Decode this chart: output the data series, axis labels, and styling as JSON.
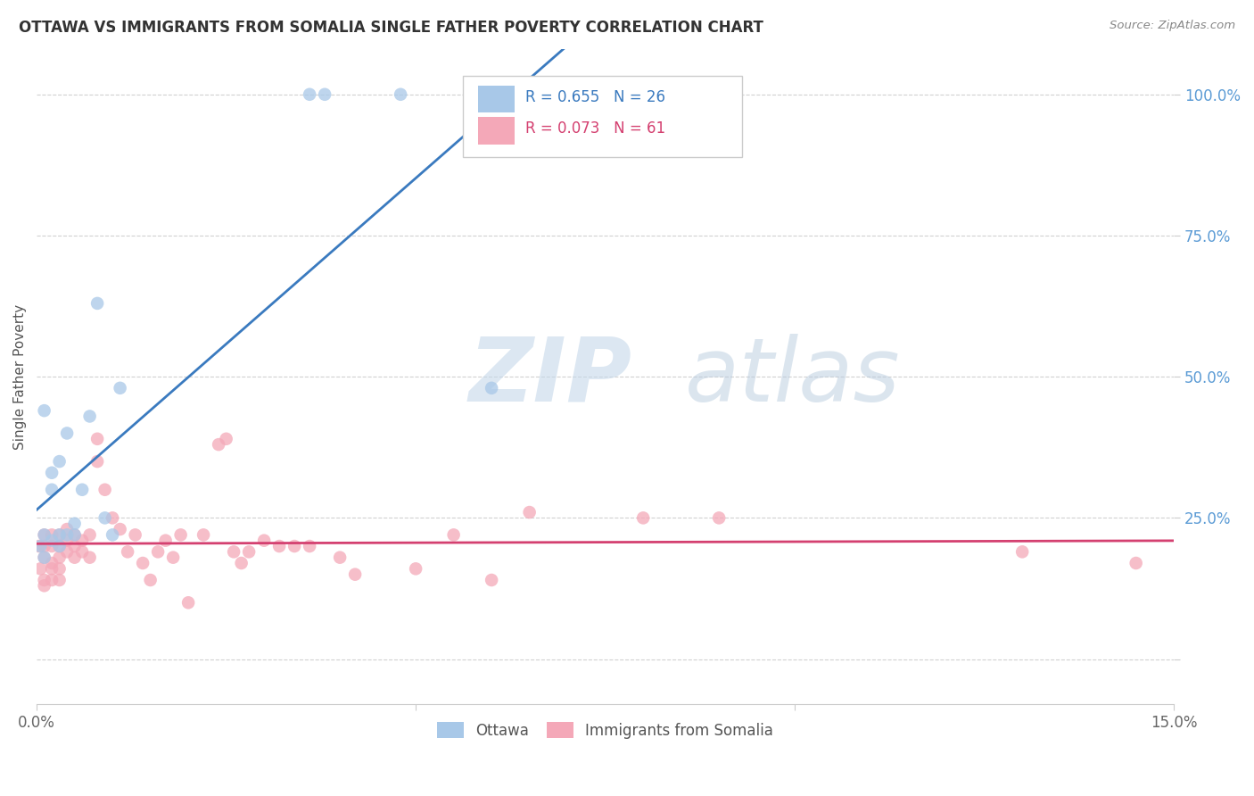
{
  "title": "OTTAWA VS IMMIGRANTS FROM SOMALIA SINGLE FATHER POVERTY CORRELATION CHART",
  "source": "Source: ZipAtlas.com",
  "ylabel": "Single Father Poverty",
  "x_min": 0.0,
  "x_max": 0.15,
  "y_min": -0.08,
  "y_max": 1.08,
  "ottawa_R": 0.655,
  "ottawa_N": 26,
  "somalia_R": 0.073,
  "somalia_N": 61,
  "ottawa_color": "#a8c8e8",
  "somalia_color": "#f4a8b8",
  "trendline_ottawa_color": "#3a7abf",
  "trendline_somalia_color": "#d44070",
  "background_color": "#ffffff",
  "grid_color": "#cccccc",
  "ottawa_x": [
    0.0005,
    0.001,
    0.001,
    0.001,
    0.002,
    0.002,
    0.002,
    0.003,
    0.003,
    0.003,
    0.004,
    0.004,
    0.005,
    0.005,
    0.006,
    0.007,
    0.008,
    0.009,
    0.01,
    0.011,
    0.036,
    0.038,
    0.048,
    0.06,
    0.063,
    0.063
  ],
  "ottawa_y": [
    0.2,
    0.18,
    0.22,
    0.44,
    0.21,
    0.3,
    0.33,
    0.2,
    0.22,
    0.35,
    0.22,
    0.4,
    0.22,
    0.24,
    0.3,
    0.43,
    0.63,
    0.25,
    0.22,
    0.48,
    1.0,
    1.0,
    1.0,
    0.48,
    1.0,
    1.0
  ],
  "somalia_x": [
    0.0003,
    0.0005,
    0.001,
    0.001,
    0.001,
    0.001,
    0.001,
    0.002,
    0.002,
    0.002,
    0.002,
    0.002,
    0.003,
    0.003,
    0.003,
    0.003,
    0.003,
    0.004,
    0.004,
    0.004,
    0.005,
    0.005,
    0.005,
    0.006,
    0.006,
    0.007,
    0.007,
    0.008,
    0.008,
    0.009,
    0.01,
    0.011,
    0.012,
    0.013,
    0.014,
    0.015,
    0.016,
    0.017,
    0.018,
    0.019,
    0.02,
    0.022,
    0.024,
    0.025,
    0.026,
    0.027,
    0.028,
    0.03,
    0.032,
    0.034,
    0.036,
    0.04,
    0.042,
    0.05,
    0.055,
    0.06,
    0.065,
    0.08,
    0.09,
    0.13,
    0.145
  ],
  "somalia_y": [
    0.2,
    0.16,
    0.14,
    0.18,
    0.2,
    0.22,
    0.13,
    0.17,
    0.2,
    0.22,
    0.14,
    0.16,
    0.18,
    0.2,
    0.22,
    0.14,
    0.16,
    0.19,
    0.21,
    0.23,
    0.18,
    0.2,
    0.22,
    0.19,
    0.21,
    0.18,
    0.22,
    0.35,
    0.39,
    0.3,
    0.25,
    0.23,
    0.19,
    0.22,
    0.17,
    0.14,
    0.19,
    0.21,
    0.18,
    0.22,
    0.1,
    0.22,
    0.38,
    0.39,
    0.19,
    0.17,
    0.19,
    0.21,
    0.2,
    0.2,
    0.2,
    0.18,
    0.15,
    0.16,
    0.22,
    0.14,
    0.26,
    0.25,
    0.25,
    0.19,
    0.17
  ]
}
